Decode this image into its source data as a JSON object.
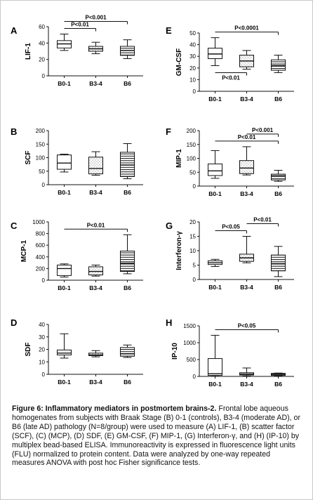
{
  "figure": {
    "caption_title": "Figure 6: Inflammatory mediators in postmortem brains-2.",
    "caption_body": "Frontal lobe aqueous homogenates from subjects with Braak Stage (B) 0-1 (controls), B3-4 (moderate AD), or B6 (late AD) pathology (N=8/group) were used to measure (A) LIF-1, (B) scatter factor (SCF), (C) (MCP), (D) SDF, (E) GM-CSF, (F) MIP-1, (G) Interferon-γ, and (H) (IP-10) by multiplex bead-based ELISA. Immunoreactivity is expressed in fluorescence light units (FLU) normalized to protein content. Data were analyzed by one-way repeated measures ANOVA with post hoc Fisher significance tests."
  },
  "chart_data": [
    {
      "panel": "A",
      "type": "box",
      "ylabel": "LIF-1",
      "categories": [
        "B0-1",
        "B3-4",
        "B6"
      ],
      "ylim": [
        0,
        60
      ],
      "yticks": [
        0,
        20,
        40,
        60
      ],
      "fills": [
        "plain",
        "dots",
        "hlines"
      ],
      "boxes": [
        {
          "min": 31,
          "q1": 34,
          "median": 39,
          "q3": 43,
          "max": 51
        },
        {
          "min": 27,
          "q1": 30,
          "median": 33,
          "q3": 36,
          "max": 41
        },
        {
          "min": 21,
          "q1": 25,
          "median": 31,
          "q3": 36,
          "max": 44
        }
      ],
      "significance": [
        {
          "label": "P<0.01",
          "from": 0,
          "to": 1
        },
        {
          "label": "P<0.001",
          "from": 0,
          "to": 2
        }
      ]
    },
    {
      "panel": "B",
      "type": "box",
      "ylabel": "SCF",
      "categories": [
        "B0-1",
        "B3-4",
        "B6"
      ],
      "ylim": [
        0,
        200
      ],
      "yticks": [
        0,
        50,
        100,
        150,
        200
      ],
      "fills": [
        "plain",
        "dots",
        "hlines"
      ],
      "boxes": [
        {
          "min": 47,
          "q1": 57,
          "median": 80,
          "q3": 110,
          "max": 113
        },
        {
          "min": 35,
          "q1": 40,
          "median": 60,
          "q3": 102,
          "max": 122
        },
        {
          "min": 22,
          "q1": 30,
          "median": 73,
          "q3": 120,
          "max": 152
        }
      ],
      "significance": []
    },
    {
      "panel": "C",
      "type": "box",
      "ylabel": "MCP-1",
      "categories": [
        "B0-1",
        "B3-4",
        "B6"
      ],
      "ylim": [
        0,
        1000
      ],
      "yticks": [
        0,
        200,
        400,
        600,
        800,
        1000
      ],
      "fills": [
        "plain",
        "dots",
        "hlines"
      ],
      "boxes": [
        {
          "min": 55,
          "q1": 80,
          "median": 200,
          "q3": 260,
          "max": 280
        },
        {
          "min": 70,
          "q1": 90,
          "median": 150,
          "q3": 230,
          "max": 260
        },
        {
          "min": 110,
          "q1": 150,
          "median": 290,
          "q3": 500,
          "max": 780
        }
      ],
      "significance": [
        {
          "label": "P<0.01",
          "from": 0,
          "to": 2
        }
      ]
    },
    {
      "panel": "D",
      "type": "box",
      "ylabel": "SDF",
      "categories": [
        "B0-1",
        "B3-4",
        "B6"
      ],
      "ylim": [
        0,
        40
      ],
      "yticks": [
        0,
        10,
        20,
        30,
        40
      ],
      "fills": [
        "plain",
        "dots",
        "hlines"
      ],
      "boxes": [
        {
          "min": 13,
          "q1": 15.5,
          "median": 17,
          "q3": 19.5,
          "max": 32.5
        },
        {
          "min": 14,
          "q1": 15,
          "median": 15.5,
          "q3": 17,
          "max": 19
        },
        {
          "min": 13.5,
          "q1": 14.5,
          "median": 16.5,
          "q3": 21.5,
          "max": 23.5
        }
      ],
      "significance": []
    },
    {
      "panel": "E",
      "type": "box",
      "ylabel": "GM-CSF",
      "categories": [
        "B0-1",
        "B3-4",
        "B6"
      ],
      "ylim": [
        0,
        50
      ],
      "yticks": [
        0,
        10,
        20,
        30,
        40,
        50
      ],
      "fills": [
        "plain",
        "dots",
        "hlines"
      ],
      "boxes": [
        {
          "min": 22,
          "q1": 28,
          "median": 32,
          "q3": 37,
          "max": 46
        },
        {
          "min": 19,
          "q1": 21,
          "median": 26,
          "q3": 31,
          "max": 35
        },
        {
          "min": 16,
          "q1": 18,
          "median": 22,
          "q3": 27,
          "max": 31
        }
      ],
      "significance": [
        {
          "label": "P<0.01",
          "from": 0,
          "to": 1,
          "below": true
        },
        {
          "label": "P<0.0001",
          "from": 0,
          "to": 2
        }
      ]
    },
    {
      "panel": "F",
      "type": "box",
      "ylabel": "MIP-1",
      "categories": [
        "B0-1",
        "B3-4",
        "B6"
      ],
      "ylim": [
        0,
        200
      ],
      "yticks": [
        0,
        50,
        100,
        150,
        200
      ],
      "fills": [
        "plain",
        "dots",
        "hlines"
      ],
      "boxes": [
        {
          "min": 28,
          "q1": 38,
          "median": 55,
          "q3": 80,
          "max": 128
        },
        {
          "min": 40,
          "q1": 45,
          "median": 65,
          "q3": 92,
          "max": 142
        },
        {
          "min": 17,
          "q1": 22,
          "median": 37,
          "q3": 43,
          "max": 57
        }
      ],
      "significance": [
        {
          "label": "P<0.01",
          "from": 0,
          "to": 2
        },
        {
          "label": "P<0.001",
          "from": 1,
          "to": 2
        }
      ]
    },
    {
      "panel": "G",
      "type": "box",
      "ylabel": "Interferon-γ",
      "categories": [
        "B0-1",
        "B3-4",
        "B6"
      ],
      "ylim": [
        0,
        20
      ],
      "yticks": [
        0,
        5,
        10,
        15,
        20
      ],
      "fills": [
        "plain",
        "dots",
        "hlines"
      ],
      "boxes": [
        {
          "min": 4.5,
          "q1": 5.2,
          "median": 5.8,
          "q3": 6.5,
          "max": 7
        },
        {
          "min": 5.8,
          "q1": 6.3,
          "median": 7.5,
          "q3": 8.8,
          "max": 15
        },
        {
          "min": 1,
          "q1": 3,
          "median": 5.5,
          "q3": 8.5,
          "max": 11.5
        }
      ],
      "significance": [
        {
          "label": "P<0.05",
          "from": 0,
          "to": 1
        },
        {
          "label": "P<0.01",
          "from": 1,
          "to": 2
        }
      ]
    },
    {
      "panel": "H",
      "type": "box",
      "ylabel": "IP-10",
      "categories": [
        "B0-1",
        "B3-4",
        "B6"
      ],
      "ylim": [
        0,
        1500
      ],
      "yticks": [
        0,
        500,
        1000,
        1500
      ],
      "fills": [
        "plain",
        "dots",
        "hlines"
      ],
      "boxes": [
        {
          "min": 5,
          "q1": 30,
          "median": 80,
          "q3": 530,
          "max": 1220
        },
        {
          "min": 10,
          "q1": 40,
          "median": 70,
          "q3": 110,
          "max": 250
        },
        {
          "min": 10,
          "q1": 30,
          "median": 60,
          "q3": 90,
          "max": 100
        }
      ],
      "significance": [
        {
          "label": "P<0.05",
          "from": 0,
          "to": 2
        }
      ]
    }
  ]
}
